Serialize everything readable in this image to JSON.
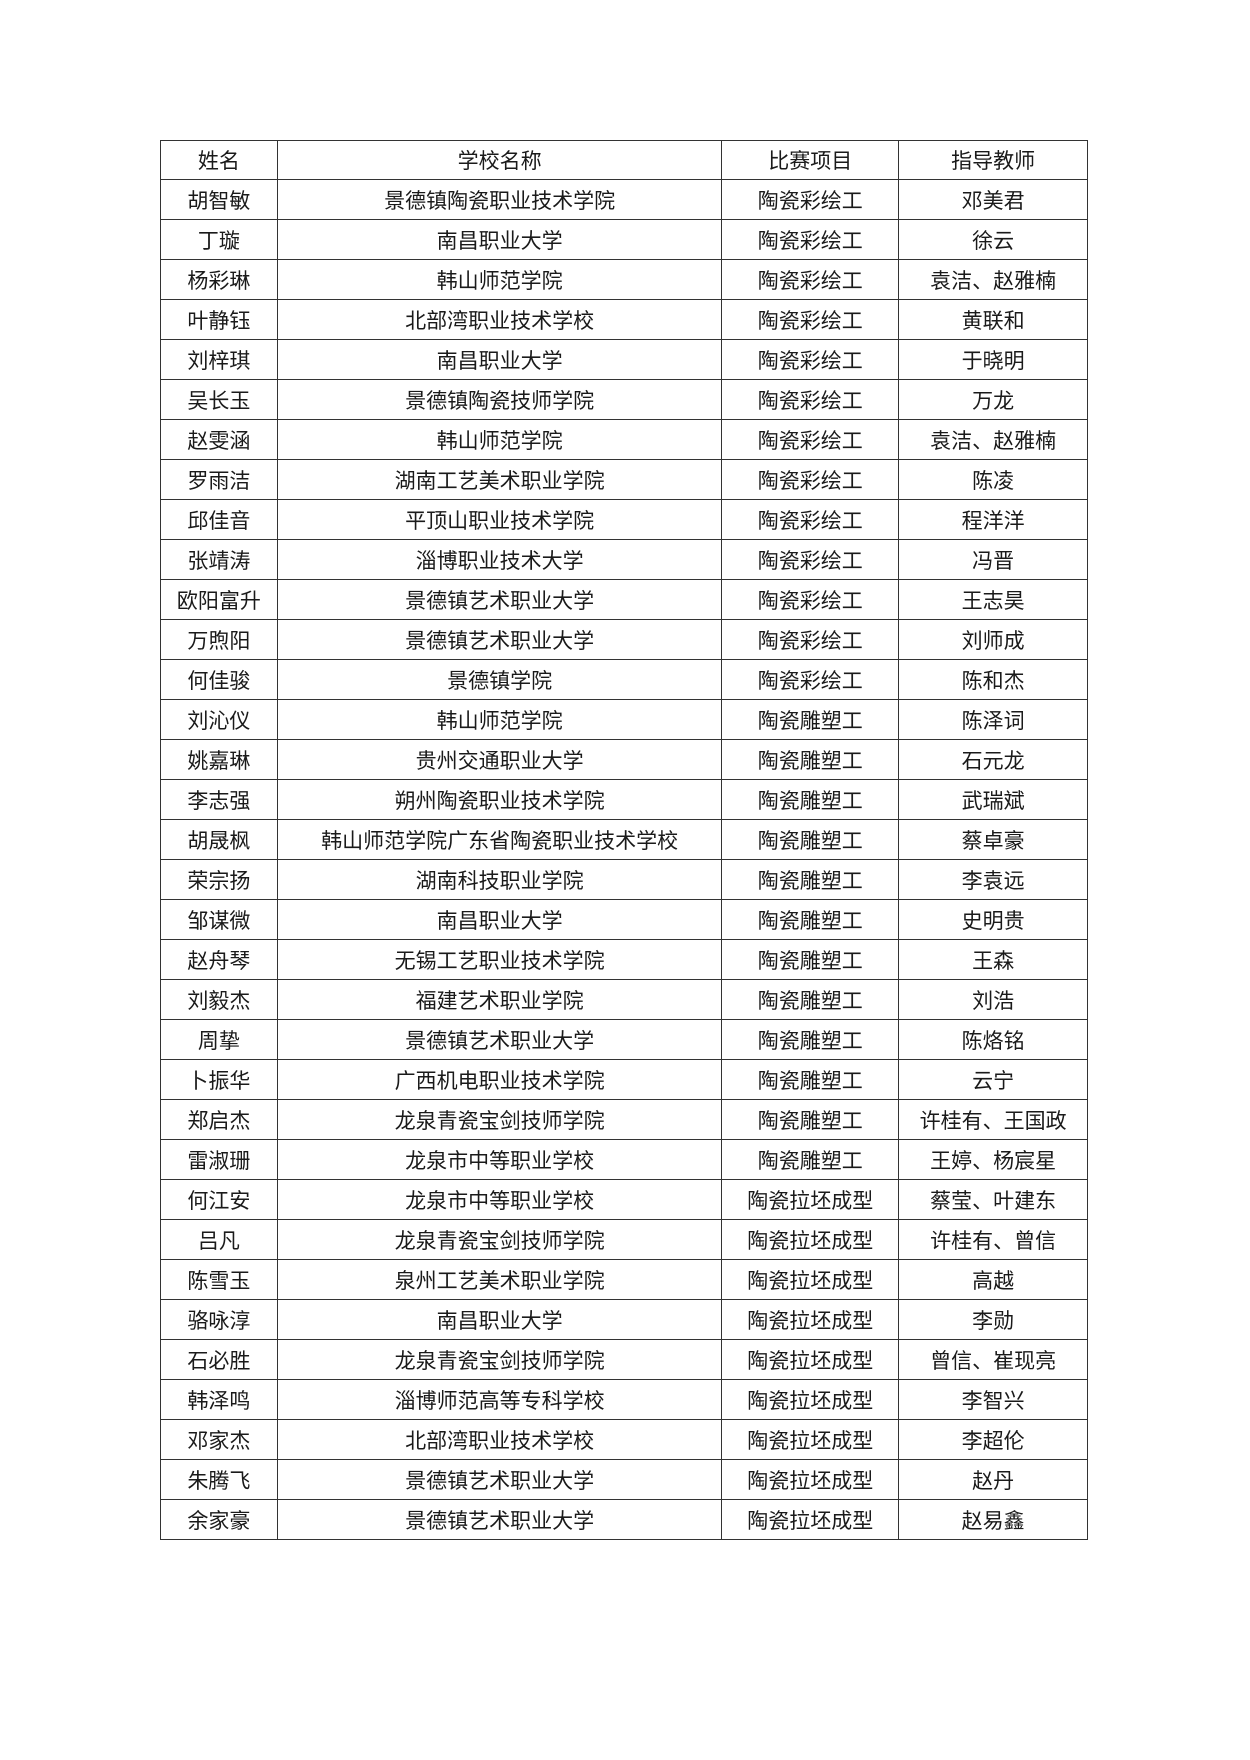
{
  "headers": [
    "姓名",
    "学校名称",
    "比赛项目",
    "指导教师"
  ],
  "rows": [
    [
      "胡智敏",
      "景德镇陶瓷职业技术学院",
      "陶瓷彩绘工",
      "邓美君"
    ],
    [
      "丁璇",
      "南昌职业大学",
      "陶瓷彩绘工",
      "徐云"
    ],
    [
      "杨彩琳",
      "韩山师范学院",
      "陶瓷彩绘工",
      "袁洁、赵雅楠"
    ],
    [
      "叶静钰",
      "北部湾职业技术学校",
      "陶瓷彩绘工",
      "黄联和"
    ],
    [
      "刘梓琪",
      "南昌职业大学",
      "陶瓷彩绘工",
      "于晓明"
    ],
    [
      "吴长玉",
      "景德镇陶瓷技师学院",
      "陶瓷彩绘工",
      "万龙"
    ],
    [
      "赵雯涵",
      "韩山师范学院",
      "陶瓷彩绘工",
      "袁洁、赵雅楠"
    ],
    [
      "罗雨洁",
      "湖南工艺美术职业学院",
      "陶瓷彩绘工",
      "陈凌"
    ],
    [
      "邱佳音",
      "平顶山职业技术学院",
      "陶瓷彩绘工",
      "程洋洋"
    ],
    [
      "张靖涛",
      "淄博职业技术大学",
      "陶瓷彩绘工",
      "冯晋"
    ],
    [
      "欧阳富升",
      "景德镇艺术职业大学",
      "陶瓷彩绘工",
      "王志昊"
    ],
    [
      "万煦阳",
      "景德镇艺术职业大学",
      "陶瓷彩绘工",
      "刘师成"
    ],
    [
      "何佳骏",
      "景德镇学院",
      "陶瓷彩绘工",
      "陈和杰"
    ],
    [
      "刘沁仪",
      "韩山师范学院",
      "陶瓷雕塑工",
      "陈泽词"
    ],
    [
      "姚嘉琳",
      "贵州交通职业大学",
      "陶瓷雕塑工",
      "石元龙"
    ],
    [
      "李志强",
      "朔州陶瓷职业技术学院",
      "陶瓷雕塑工",
      "武瑞斌"
    ],
    [
      "胡晟枫",
      "韩山师范学院广东省陶瓷职业技术学校",
      "陶瓷雕塑工",
      "蔡卓豪"
    ],
    [
      "荣宗扬",
      "湖南科技职业学院",
      "陶瓷雕塑工",
      "李袁远"
    ],
    [
      "邹谋微",
      "南昌职业大学",
      "陶瓷雕塑工",
      "史明贵"
    ],
    [
      "赵舟琴",
      "无锡工艺职业技术学院",
      "陶瓷雕塑工",
      "王森"
    ],
    [
      "刘毅杰",
      "福建艺术职业学院",
      "陶瓷雕塑工",
      "刘浩"
    ],
    [
      "周挚",
      "景德镇艺术职业大学",
      "陶瓷雕塑工",
      "陈烙铭"
    ],
    [
      "卜振华",
      "广西机电职业技术学院",
      "陶瓷雕塑工",
      "云宁"
    ],
    [
      "郑启杰",
      "龙泉青瓷宝剑技师学院",
      "陶瓷雕塑工",
      "许桂有、王国政"
    ],
    [
      "雷淑珊",
      "龙泉市中等职业学校",
      "陶瓷雕塑工",
      "王婷、杨宸星"
    ],
    [
      "何江安",
      "龙泉市中等职业学校",
      "陶瓷拉坯成型",
      "蔡莹、叶建东"
    ],
    [
      "吕凡",
      "龙泉青瓷宝剑技师学院",
      "陶瓷拉坯成型",
      "许桂有、曾信"
    ],
    [
      "陈雪玉",
      "泉州工艺美术职业学院",
      "陶瓷拉坯成型",
      "高越"
    ],
    [
      "骆咏淳",
      "南昌职业大学",
      "陶瓷拉坯成型",
      "李勋"
    ],
    [
      "石必胜",
      "龙泉青瓷宝剑技师学院",
      "陶瓷拉坯成型",
      "曾信、崔现亮"
    ],
    [
      "韩泽鸣",
      "淄博师范高等专科学校",
      "陶瓷拉坯成型",
      "李智兴"
    ],
    [
      "邓家杰",
      "北部湾职业技术学校",
      "陶瓷拉坯成型",
      "李超伦"
    ],
    [
      "朱腾飞",
      "景德镇艺术职业大学",
      "陶瓷拉坯成型",
      "赵丹"
    ],
    [
      "余家豪",
      "景德镇艺术职业大学",
      "陶瓷拉坯成型",
      "赵易鑫"
    ]
  ]
}
